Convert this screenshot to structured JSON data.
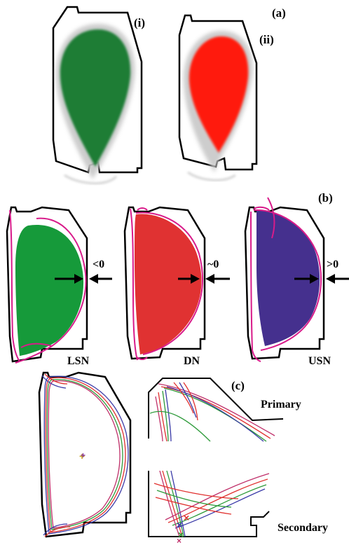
{
  "panels": {
    "a": {
      "label": "(a)",
      "items": [
        {
          "label": "(i)",
          "fill_color": "#1e7d35"
        },
        {
          "label": "(ii)",
          "fill_color": "#ff1a0d"
        }
      ]
    },
    "b": {
      "label": "(b)",
      "items": [
        {
          "config": "LSN",
          "sign": "<0",
          "fill_color": "#169a3a"
        },
        {
          "config": "DN",
          "sign": "~0",
          "fill_color": "#e03232"
        },
        {
          "config": "USN",
          "sign": ">0",
          "fill_color": "#45308e"
        }
      ],
      "separatrix_color": "#d81b8a"
    },
    "c": {
      "label": "(c)",
      "primary_label": "Primary",
      "secondary_label": "Secondary",
      "line_colors": [
        "#e0302e",
        "#2e9a3a",
        "#3a3aa8",
        "#c0306a"
      ]
    }
  },
  "colors": {
    "wall": "#000000",
    "halo": "#c8c8c8"
  }
}
